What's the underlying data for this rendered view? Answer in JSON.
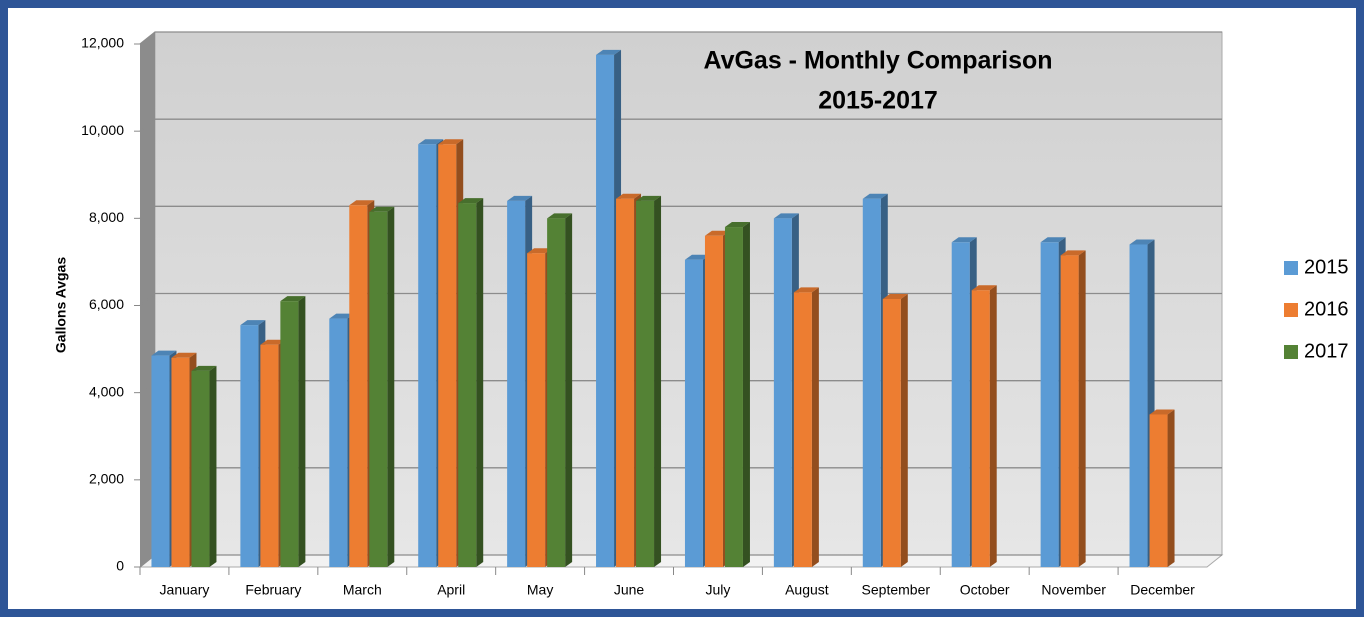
{
  "chart_data": {
    "type": "bar3d",
    "title": [
      "AvGas - Monthly Comparison",
      "2015-2017"
    ],
    "y_label": "Gallons Avgas",
    "categories": [
      "January",
      "February",
      "March",
      "April",
      "May",
      "June",
      "July",
      "August",
      "September",
      "October",
      "November",
      "December"
    ],
    "series": [
      {
        "name": "2015",
        "color": "#5b9bd5",
        "values": [
          4850,
          5550,
          5700,
          9700,
          8400,
          11750,
          7050,
          8000,
          8450,
          7450,
          7450,
          7400
        ]
      },
      {
        "name": "2016",
        "color": "#ed7d31",
        "values": [
          4800,
          5100,
          8300,
          9700,
          7200,
          8450,
          7600,
          6300,
          6150,
          6350,
          7150,
          3500
        ]
      },
      {
        "name": "2017",
        "color": "#548235",
        "values": [
          4500,
          6100,
          8150,
          8350,
          8000,
          8400,
          7800,
          null,
          null,
          null,
          null,
          null
        ]
      }
    ],
    "ylim": [
      0,
      12000
    ],
    "yticks": [
      0,
      {
        "value": 2000,
        "label": "2,000"
      },
      {
        "value": 4000,
        "label": "4,000"
      },
      {
        "value": 6000,
        "label": "6,000"
      },
      {
        "value": 8000,
        "label": "8,000"
      },
      {
        "value": 10000,
        "label": "10,000"
      },
      {
        "value": 12000,
        "label": "12,000"
      }
    ],
    "grid": true,
    "legend": "right"
  }
}
